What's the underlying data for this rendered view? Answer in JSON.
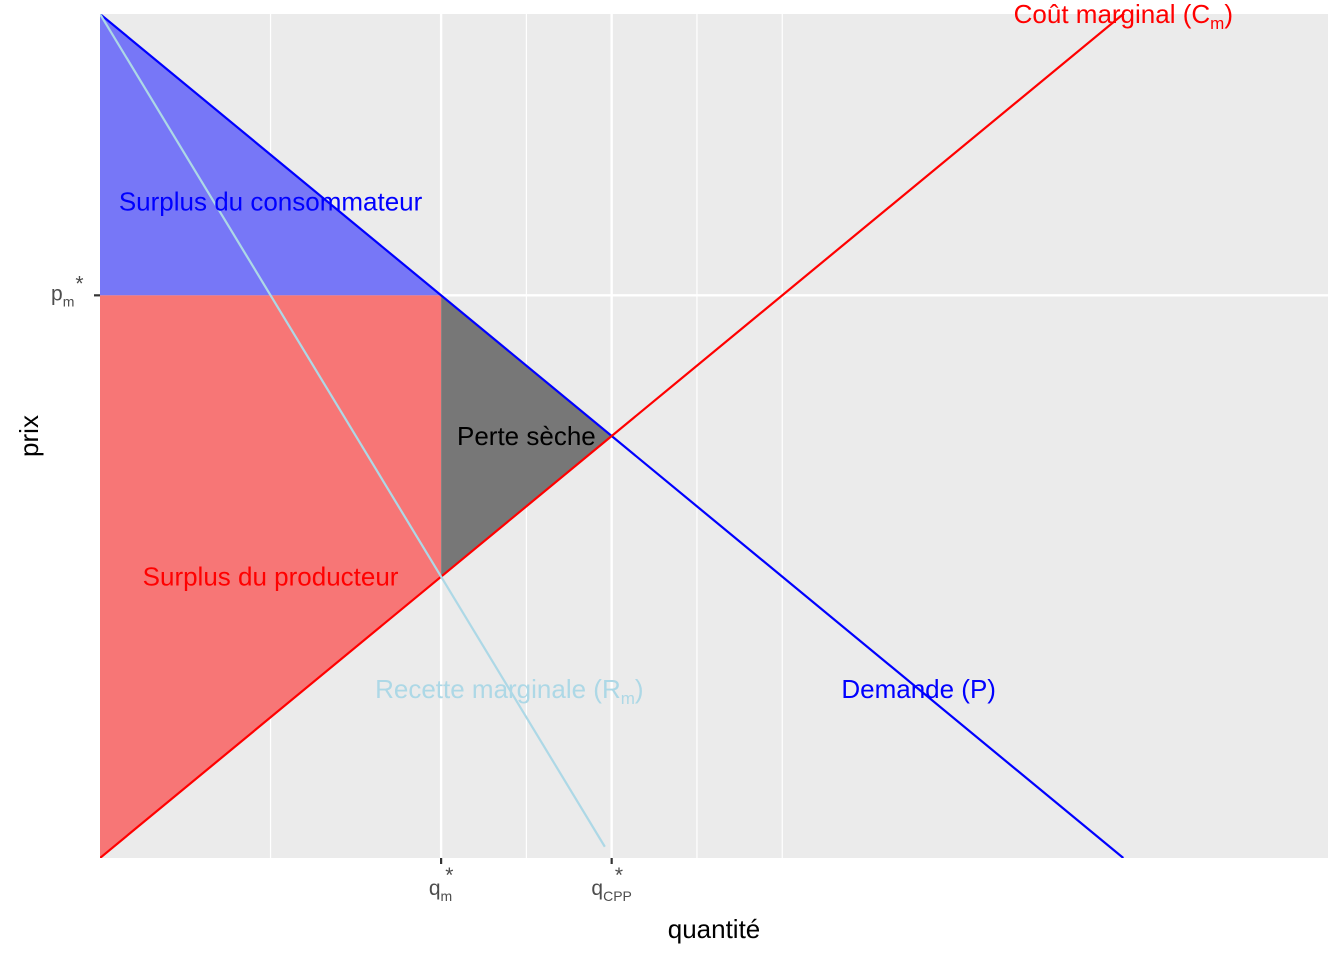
{
  "chart_data": {
    "type": "line",
    "title": "",
    "xlabel": "quantité",
    "ylabel": "prix",
    "xlim": [
      0,
      180
    ],
    "ylim": [
      0,
      90
    ],
    "grid": true,
    "legend": "none",
    "colors": {
      "panel": "#ebebeb",
      "grid": "#ffffff",
      "demand": "#0000ff",
      "marginal_cost": "#ff0000",
      "marginal_revenue": "#add8e6",
      "consumer_surplus": "#7777f7",
      "producer_surplus": "#f77676",
      "deadweight_loss": "#777777"
    },
    "x_ticks": [
      {
        "x": 50,
        "base": "q",
        "sub": "m",
        "sup": "*"
      },
      {
        "x": 75,
        "base": "q",
        "sub": "CPP",
        "sup": "*"
      }
    ],
    "y_ticks": [
      {
        "y": 60,
        "base": "p",
        "sub": "m",
        "sup": "*"
      }
    ],
    "minor_grid_x": [
      25,
      62.5,
      87.5,
      100
    ],
    "series": [
      {
        "key": "demand",
        "points": [
          [
            0,
            90
          ],
          [
            150,
            0
          ]
        ]
      },
      {
        "key": "marginal_cost",
        "points": [
          [
            0,
            0
          ],
          [
            180,
            108
          ]
        ]
      },
      {
        "key": "marginal_revenue",
        "points": [
          [
            0,
            90
          ],
          [
            74,
            1.2
          ]
        ]
      }
    ],
    "areas": [
      {
        "key": "consumer_surplus",
        "points": [
          [
            0,
            90
          ],
          [
            50,
            60
          ],
          [
            0,
            60
          ]
        ]
      },
      {
        "key": "producer_surplus",
        "points": [
          [
            0,
            60
          ],
          [
            50,
            60
          ],
          [
            50,
            30
          ],
          [
            0,
            0
          ]
        ]
      },
      {
        "key": "deadweight_loss",
        "points": [
          [
            50,
            60
          ],
          [
            75,
            45
          ],
          [
            50,
            30
          ]
        ]
      }
    ],
    "annotations": [
      {
        "key": "consumer_surplus",
        "text": "Surplus du consommateur",
        "x": 25,
        "y": 70,
        "color": "#0000ff"
      },
      {
        "key": "producer_surplus",
        "text": "Surplus du producteur",
        "x": 25,
        "y": 30,
        "color": "#ff0000"
      },
      {
        "key": "deadweight_loss",
        "text": "Perte sèche",
        "x": 62.5,
        "y": 45,
        "color": "#000000"
      },
      {
        "key": "marginal_cost",
        "text": "Coût marginal (C",
        "sub": "m",
        "close": ")",
        "x": 150,
        "y": 90,
        "color": "#ff0000"
      },
      {
        "key": "demand",
        "text": "Demande (P)",
        "x": 120,
        "y": 18,
        "color": "#0000ff"
      },
      {
        "key": "marginal_revenue",
        "text": "Recette marginale (R",
        "sub": "m",
        "close": ")",
        "x": 60,
        "y": 18,
        "color": "#add8e6"
      }
    ]
  }
}
